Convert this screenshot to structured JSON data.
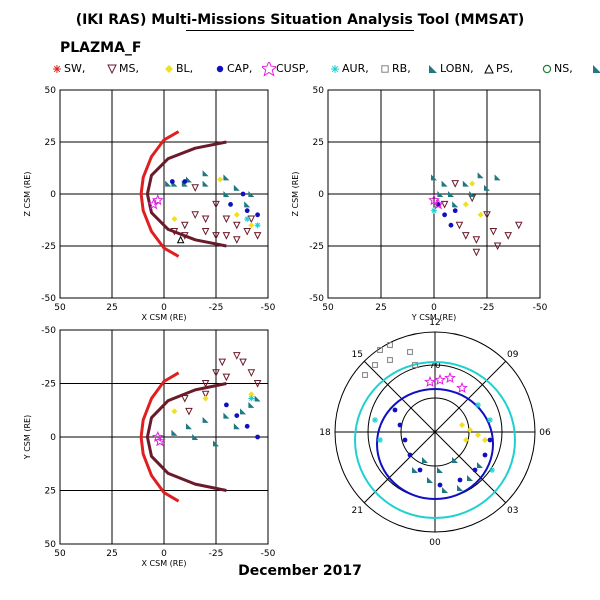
{
  "header": {
    "title": "(IKI RAS) Multi-Missions Situation Analysis Tool (MMSAT)",
    "instrument": "PLAZMA_F",
    "footer": "December 2017"
  },
  "legend": [
    {
      "label": "SW,",
      "symbol": "asterisk",
      "color": "#e02020"
    },
    {
      "label": "MS,",
      "symbol": "triangle-down",
      "color": "#6b1a2a"
    },
    {
      "label": "BL,",
      "symbol": "diamond",
      "color": "#f0e020"
    },
    {
      "label": "CAP,",
      "symbol": "circle-filled",
      "color": "#1010c0"
    },
    {
      "label": "CUSP,",
      "symbol": "star",
      "color": "#e020e0"
    },
    {
      "label": "AUR,",
      "symbol": "asterisk",
      "color": "#20d0d0"
    },
    {
      "label": "RB,",
      "symbol": "square",
      "color": "#808080"
    },
    {
      "label": "LOBN,",
      "symbol": "triangle-filled",
      "color": "#207880"
    },
    {
      "label": "PS,",
      "symbol": "triangle-up",
      "color": "#000000"
    },
    {
      "label": "NS,",
      "symbol": "circle-open",
      "color": "#208040"
    },
    {
      "label": "",
      "symbol": "triangle-filled",
      "color": "#207880"
    }
  ],
  "chart_data": [
    {
      "type": "scatter",
      "id": "xz",
      "xlabel": "X CSM (RE)",
      "ylabel": "Z CSM (RE)",
      "xlim": [
        50,
        -50
      ],
      "ylim": [
        -50,
        50
      ],
      "xticks": [
        50,
        25,
        0,
        -25,
        -50
      ],
      "yticks": [
        50,
        25,
        0,
        -25,
        -50
      ],
      "grid": true,
      "boundaries": [
        {
          "name": "bow shock",
          "color": "#e02020",
          "points": [
            [
              -7,
              30
            ],
            [
              0,
              26
            ],
            [
              6,
              18
            ],
            [
              10,
              8
            ],
            [
              11,
              0
            ],
            [
              10,
              -8
            ],
            [
              6,
              -18
            ],
            [
              0,
              -26
            ],
            [
              -7,
              -30
            ]
          ]
        },
        {
          "name": "magnetopause",
          "color": "#6b1a2a",
          "points": [
            [
              -30,
              25
            ],
            [
              -15,
              22
            ],
            [
              -2,
              17
            ],
            [
              6,
              9
            ],
            [
              8,
              0
            ],
            [
              6,
              -9
            ],
            [
              -2,
              -17
            ],
            [
              -15,
              -22
            ],
            [
              -30,
              -25
            ]
          ]
        }
      ],
      "series": [
        {
          "region": "MS",
          "color": "#6b1a2a",
          "points": [
            [
              -15,
              3
            ],
            [
              -25,
              -5
            ],
            [
              -30,
              -12
            ],
            [
              -35,
              -15
            ],
            [
              -40,
              -18
            ],
            [
              -45,
              -20
            ],
            [
              -30,
              -20
            ],
            [
              -20,
              -18
            ],
            [
              -10,
              -20
            ],
            [
              -5,
              -18
            ],
            [
              -15,
              -10
            ],
            [
              -25,
              -20
            ],
            [
              -35,
              -22
            ],
            [
              -42,
              -12
            ],
            [
              -20,
              -12
            ],
            [
              -10,
              -15
            ]
          ]
        },
        {
          "region": "LOBN",
          "color": "#207880",
          "points": [
            [
              -5,
              5
            ],
            [
              -12,
              7
            ],
            [
              -20,
              10
            ],
            [
              -30,
              8
            ],
            [
              -35,
              3
            ],
            [
              -42,
              0
            ],
            [
              -40,
              -5
            ],
            [
              -30,
              0
            ],
            [
              -20,
              5
            ],
            [
              -10,
              5
            ],
            [
              -2,
              5
            ]
          ]
        },
        {
          "region": "CAP",
          "color": "#1010c0",
          "points": [
            [
              -32,
              -5
            ],
            [
              -40,
              -8
            ],
            [
              -45,
              -10
            ],
            [
              -38,
              0
            ],
            [
              -10,
              6
            ],
            [
              -4,
              6
            ]
          ]
        },
        {
          "region": "BL",
          "color": "#f0e020",
          "points": [
            [
              -27,
              7
            ],
            [
              -35,
              -10
            ],
            [
              -42,
              -15
            ],
            [
              -5,
              -12
            ]
          ]
        },
        {
          "region": "CUSP",
          "color": "#e020e0",
          "points": [
            [
              3,
              -3
            ],
            [
              5,
              -5
            ]
          ]
        },
        {
          "region": "AUR",
          "color": "#20d0d0",
          "points": [
            [
              -40,
              -12
            ],
            [
              -45,
              -15
            ]
          ]
        },
        {
          "region": "PS",
          "color": "#000000",
          "points": [
            [
              -8,
              -22
            ]
          ]
        }
      ]
    },
    {
      "type": "scatter",
      "id": "yz",
      "xlabel": "Y CSM (RE)",
      "ylabel": "Z CSM (RE)",
      "xlim": [
        50,
        -50
      ],
      "ylim": [
        -50,
        50
      ],
      "xticks": [
        50,
        25,
        0,
        -25,
        -50
      ],
      "yticks": [
        50,
        25,
        0,
        -25,
        -50
      ],
      "grid": true,
      "series": [
        {
          "region": "MS",
          "color": "#6b1a2a",
          "points": [
            [
              -5,
              -5
            ],
            [
              -12,
              -15
            ],
            [
              -20,
              -22
            ],
            [
              -30,
              -25
            ],
            [
              -35,
              -20
            ],
            [
              -40,
              -15
            ],
            [
              -25,
              -10
            ],
            [
              -18,
              -2
            ],
            [
              -10,
              5
            ],
            [
              -20,
              -28
            ],
            [
              -28,
              -18
            ],
            [
              -15,
              -20
            ]
          ]
        },
        {
          "region": "LOBN",
          "color": "#207880",
          "points": [
            [
              -8,
              0
            ],
            [
              -15,
              5
            ],
            [
              -22,
              9
            ],
            [
              -30,
              8
            ],
            [
              -25,
              3
            ],
            [
              -18,
              0
            ],
            [
              -10,
              -5
            ],
            [
              -5,
              5
            ],
            [
              0,
              8
            ],
            [
              -3,
              0
            ]
          ]
        },
        {
          "region": "CAP",
          "color": "#1010c0",
          "points": [
            [
              -5,
              -10
            ],
            [
              -10,
              -8
            ],
            [
              -2,
              -5
            ],
            [
              -8,
              -15
            ]
          ]
        },
        {
          "region": "BL",
          "color": "#f0e020",
          "points": [
            [
              -15,
              -5
            ],
            [
              -18,
              5
            ],
            [
              -22,
              -10
            ]
          ]
        },
        {
          "region": "CUSP",
          "color": "#e020e0",
          "points": [
            [
              0,
              -3
            ],
            [
              -2,
              -5
            ]
          ]
        },
        {
          "region": "AUR",
          "color": "#20d0d0",
          "points": [
            [
              0,
              -8
            ]
          ]
        }
      ]
    },
    {
      "type": "scatter",
      "id": "xy",
      "xlabel": "X CSM (RE)",
      "ylabel": "Y CSM (RE)",
      "xlim": [
        50,
        -50
      ],
      "ylim": [
        50,
        -50
      ],
      "xticks": [
        50,
        25,
        0,
        -25,
        -50
      ],
      "yticks": [
        -50,
        -25,
        0,
        25,
        50
      ],
      "grid": true,
      "boundaries": [
        {
          "name": "bow shock",
          "color": "#e02020",
          "points": [
            [
              -7,
              -30
            ],
            [
              0,
              -26
            ],
            [
              6,
              -18
            ],
            [
              10,
              -8
            ],
            [
              11,
              0
            ],
            [
              10,
              8
            ],
            [
              6,
              18
            ],
            [
              0,
              26
            ],
            [
              -7,
              30
            ]
          ]
        },
        {
          "name": "magnetopause",
          "color": "#6b1a2a",
          "points": [
            [
              -30,
              -25
            ],
            [
              -15,
              -22
            ],
            [
              -2,
              -17
            ],
            [
              6,
              -9
            ],
            [
              8,
              0
            ],
            [
              6,
              9
            ],
            [
              -2,
              17
            ],
            [
              -15,
              22
            ],
            [
              -30,
              25
            ]
          ]
        }
      ],
      "series": [
        {
          "region": "MS",
          "color": "#6b1a2a",
          "points": [
            [
              -10,
              -18
            ],
            [
              -20,
              -25
            ],
            [
              -28,
              -35
            ],
            [
              -35,
              -38
            ],
            [
              -42,
              -30
            ],
            [
              -45,
              -25
            ],
            [
              -30,
              -28
            ],
            [
              -20,
              -20
            ],
            [
              -12,
              -12
            ],
            [
              -25,
              -30
            ],
            [
              -38,
              -35
            ]
          ]
        },
        {
          "region": "LOBN",
          "color": "#207880",
          "points": [
            [
              -5,
              -2
            ],
            [
              -12,
              -5
            ],
            [
              -20,
              -8
            ],
            [
              -30,
              -10
            ],
            [
              -38,
              -12
            ],
            [
              -42,
              -15
            ],
            [
              -45,
              -18
            ],
            [
              -35,
              -5
            ],
            [
              -25,
              3
            ],
            [
              -15,
              0
            ]
          ]
        },
        {
          "region": "CAP",
          "color": "#1010c0",
          "points": [
            [
              -35,
              -10
            ],
            [
              -40,
              -5
            ],
            [
              -45,
              0
            ],
            [
              -30,
              -15
            ]
          ]
        },
        {
          "region": "BL",
          "color": "#f0e020",
          "points": [
            [
              -5,
              -12
            ],
            [
              -20,
              -18
            ],
            [
              -42,
              -20
            ]
          ]
        },
        {
          "region": "CUSP",
          "color": "#e020e0",
          "points": [
            [
              3,
              0
            ],
            [
              2,
              2
            ]
          ]
        },
        {
          "region": "AUR",
          "color": "#20d0d0",
          "points": [
            [
              -42,
              -18
            ]
          ]
        }
      ]
    },
    {
      "type": "polar",
      "id": "polar",
      "clock_labels": [
        "12",
        "09",
        "06",
        "03",
        "00",
        "21",
        "18",
        "15"
      ],
      "inner_label": "70",
      "series": [
        {
          "region": "AUR",
          "color": "#20d0d0"
        },
        {
          "region": "CAP",
          "color": "#1010c0"
        },
        {
          "region": "LOBN",
          "color": "#207880"
        },
        {
          "region": "BL",
          "color": "#f0e020"
        },
        {
          "region": "CUSP",
          "color": "#e020e0"
        },
        {
          "region": "RB",
          "color": "#808080"
        }
      ]
    }
  ]
}
